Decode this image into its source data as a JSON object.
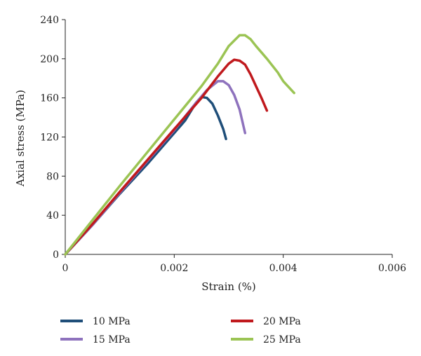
{
  "chart_data": {
    "type": "line",
    "title": "",
    "xlabel": "Strain (%)",
    "ylabel": "Axial stress (MPa)",
    "xlim": [
      0,
      0.006
    ],
    "ylim": [
      0,
      240
    ],
    "x_ticks": [
      {
        "value": 0,
        "label": "0"
      },
      {
        "value": 0.002,
        "label": "0.002"
      },
      {
        "value": 0.004,
        "label": "0.004"
      },
      {
        "value": 0.006,
        "label": "0.006"
      }
    ],
    "y_ticks": [
      {
        "value": 0,
        "label": "0"
      },
      {
        "value": 40,
        "label": "40"
      },
      {
        "value": 80,
        "label": "80"
      },
      {
        "value": 120,
        "label": "120"
      },
      {
        "value": 160,
        "label": "160"
      },
      {
        "value": 200,
        "label": "200"
      },
      {
        "value": 240,
        "label": "240"
      }
    ],
    "grid": false,
    "legend_position": "bottom",
    "series": [
      {
        "name": "10 MPa",
        "color": "#1f4e79",
        "points": [
          [
            0,
            0
          ],
          [
            0.0005,
            30
          ],
          [
            0.001,
            62
          ],
          [
            0.0015,
            92
          ],
          [
            0.002,
            124
          ],
          [
            0.0022,
            137
          ],
          [
            0.0024,
            155
          ],
          [
            0.0025,
            161
          ],
          [
            0.0026,
            160
          ],
          [
            0.0027,
            154
          ],
          [
            0.0028,
            142
          ],
          [
            0.0029,
            128
          ],
          [
            0.00295,
            118
          ]
        ]
      },
      {
        "name": "15 MPa",
        "color": "#8e72bd",
        "points": [
          [
            0,
            0
          ],
          [
            0.0005,
            30
          ],
          [
            0.001,
            63
          ],
          [
            0.0015,
            95
          ],
          [
            0.002,
            127
          ],
          [
            0.0024,
            155
          ],
          [
            0.0026,
            168
          ],
          [
            0.0028,
            177
          ],
          [
            0.0029,
            177
          ],
          [
            0.003,
            173
          ],
          [
            0.0031,
            163
          ],
          [
            0.0032,
            148
          ],
          [
            0.0033,
            124
          ]
        ]
      },
      {
        "name": "20 MPa",
        "color": "#c0191d",
        "points": [
          [
            0,
            0
          ],
          [
            0.0005,
            31
          ],
          [
            0.001,
            64
          ],
          [
            0.0015,
            96
          ],
          [
            0.002,
            128
          ],
          [
            0.0025,
            160
          ],
          [
            0.0028,
            182
          ],
          [
            0.003,
            195
          ],
          [
            0.0031,
            199
          ],
          [
            0.0032,
            198
          ],
          [
            0.0033,
            194
          ],
          [
            0.0034,
            184
          ],
          [
            0.0035,
            172
          ],
          [
            0.0036,
            160
          ],
          [
            0.0037,
            147
          ]
        ]
      },
      {
        "name": "25 MPa",
        "color": "#9bc454",
        "points": [
          [
            0,
            0
          ],
          [
            0.0005,
            35
          ],
          [
            0.001,
            70
          ],
          [
            0.0015,
            104
          ],
          [
            0.002,
            138
          ],
          [
            0.0025,
            172
          ],
          [
            0.0028,
            195
          ],
          [
            0.003,
            213
          ],
          [
            0.0032,
            224
          ],
          [
            0.0033,
            224
          ],
          [
            0.0034,
            220
          ],
          [
            0.0035,
            213
          ],
          [
            0.0037,
            200
          ],
          [
            0.0039,
            186
          ],
          [
            0.004,
            177
          ],
          [
            0.0042,
            165
          ]
        ]
      }
    ]
  }
}
